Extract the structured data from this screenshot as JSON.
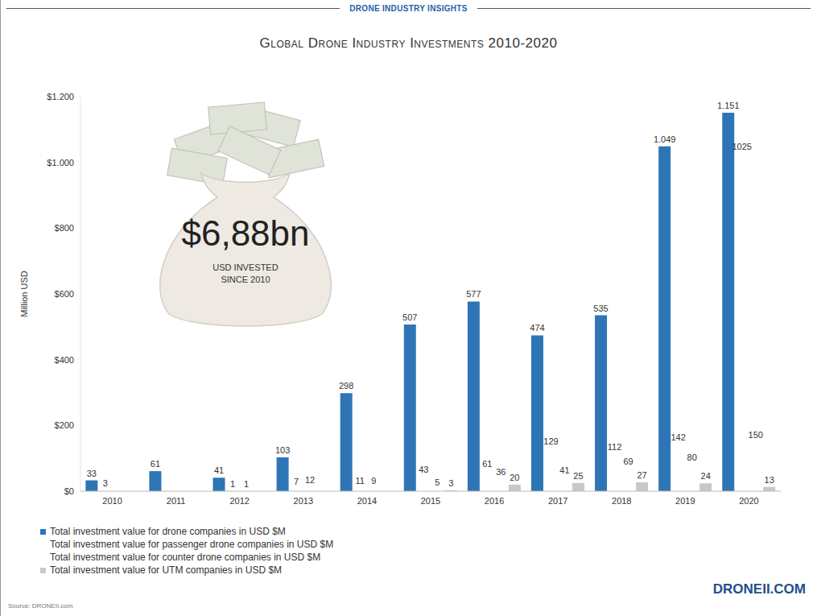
{
  "chart_data": {
    "type": "bar",
    "title": "Global Drone Industry Investments 2010-2020",
    "y_label": "Million USD",
    "categories": [
      "2010",
      "2011",
      "2012",
      "2013",
      "2014",
      "2015",
      "2016",
      "2017",
      "2018",
      "2019",
      "2020"
    ],
    "series": [
      {
        "name": "Total investment value for drone companies in USD $M",
        "color": "#2e75b6",
        "values": [
          33,
          61,
          41,
          103,
          298,
          507,
          577,
          474,
          535,
          1049,
          1151
        ],
        "value_labels": [
          "33",
          "61",
          "41",
          "103",
          "298",
          "507",
          "577",
          "474",
          "535",
          "1.049",
          "1.151"
        ]
      },
      {
        "name": "Total investment value for passenger drone companies in USD $M",
        "color": "#ffffff",
        "values": [
          3,
          null,
          1,
          7,
          11,
          43,
          61,
          129,
          112,
          142,
          1025
        ]
      },
      {
        "name": "Total investment value for counter drone companies in USD $M",
        "color": "#ffffff",
        "values": [
          null,
          null,
          1,
          12,
          9,
          5,
          36,
          41,
          69,
          80,
          150
        ]
      },
      {
        "name": "Total investment value for UTM companies in USD $M",
        "color": "#c8c8c8",
        "values": [
          null,
          null,
          null,
          null,
          null,
          3,
          20,
          25,
          27,
          24,
          13
        ]
      }
    ],
    "ylim": [
      0,
      1200
    ],
    "yticks": [
      {
        "value": 0,
        "label": "$0"
      },
      {
        "value": 200,
        "label": "$200"
      },
      {
        "value": 400,
        "label": "$400"
      },
      {
        "value": 600,
        "label": "$600"
      },
      {
        "value": 800,
        "label": "$800"
      },
      {
        "value": 1000,
        "label": "$1.000"
      },
      {
        "value": 1200,
        "label": "$1.200"
      }
    ],
    "grid": false,
    "legend": "bottom left",
    "data_labels": true,
    "annotations": {
      "header": "DRONE INDUSTRY INSIGHTS",
      "bag_value": "$6,88bn",
      "bag_text": "USD INVESTED SINCE 2010",
      "logo": "DRONEII.COM",
      "source": "Source: DRONEII.com"
    }
  }
}
